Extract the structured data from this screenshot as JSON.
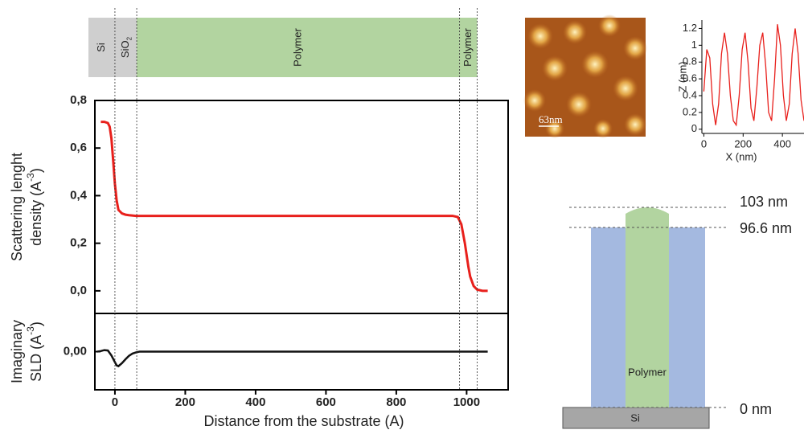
{
  "chart_data": [
    {
      "type": "line",
      "ylabel": {
        "line1": "Scattering lenght",
        "line2": "density  (A",
        "sup": "-3",
        "close": ")"
      },
      "x": [
        -40,
        -30,
        -20,
        -15,
        -10,
        -5,
        0,
        5,
        10,
        20,
        30,
        40,
        60,
        100,
        500,
        900,
        960,
        975,
        985,
        995,
        1000,
        1005,
        1010,
        1020,
        1030,
        1045,
        1060
      ],
      "series": [
        {
          "color": "#e8201c",
          "values": [
            0.71,
            0.71,
            0.705,
            0.69,
            0.64,
            0.55,
            0.45,
            0.38,
            0.34,
            0.325,
            0.32,
            0.318,
            0.315,
            0.315,
            0.315,
            0.315,
            0.315,
            0.31,
            0.28,
            0.2,
            0.15,
            0.1,
            0.06,
            0.02,
            0.005,
            0,
            0
          ]
        }
      ],
      "xlim": [
        -57,
        1118
      ],
      "ylim": [
        -0.095,
        0.8
      ],
      "yticks": [
        {
          "value": 0,
          "label": "0,0"
        },
        {
          "value": 0.2,
          "label": "0,2"
        },
        {
          "value": 0.4,
          "label": "0,4"
        },
        {
          "value": 0.6,
          "label": "0,6"
        },
        {
          "value": 0.8,
          "label": "0,8"
        }
      ]
    },
    {
      "type": "line",
      "ylabel": {
        "line1": "Imaginary",
        "line2": "SLD  (A",
        "sup": "-3",
        "close": ")"
      },
      "xlabel": "Distance from the substrate (A)",
      "x": [
        -50,
        -40,
        -30,
        -20,
        -10,
        0,
        5,
        10,
        20,
        30,
        40,
        50,
        60,
        70,
        100,
        600,
        1060
      ],
      "series": [
        {
          "color": "#111111",
          "values": [
            0,
            0.0003,
            0.0008,
            0.0006,
            -0.002,
            -0.0055,
            -0.0072,
            -0.0076,
            -0.006,
            -0.004,
            -0.0022,
            -0.001,
            -0.0004,
            0,
            0,
            0,
            0
          ]
        }
      ],
      "xlim": [
        -57,
        1118
      ],
      "ylim": [
        -0.02,
        0.02
      ],
      "xticks": [
        0,
        200,
        400,
        600,
        800,
        1000
      ],
      "yticks": [
        {
          "value": 0,
          "label": "0,00"
        }
      ]
    },
    {
      "type": "line",
      "xlabel": "X (nm)",
      "ylabel": "Z (nm)",
      "x": [
        0,
        15,
        30,
        45,
        60,
        75,
        90,
        105,
        120,
        135,
        150,
        165,
        180,
        195,
        210,
        225,
        240,
        255,
        270,
        285,
        300,
        315,
        330,
        345,
        360,
        375,
        390,
        405,
        420,
        435,
        450,
        465,
        480,
        495,
        510
      ],
      "series": [
        {
          "color": "#e8201c",
          "values": [
            0.45,
            0.95,
            0.85,
            0.3,
            0.05,
            0.3,
            0.9,
            1.15,
            0.9,
            0.4,
            0.1,
            0.05,
            0.4,
            0.95,
            1.15,
            0.8,
            0.25,
            0.1,
            0.5,
            1.0,
            1.15,
            0.75,
            0.2,
            0.1,
            0.6,
            1.25,
            1.0,
            0.4,
            0.1,
            0.3,
            0.9,
            1.2,
            0.9,
            0.35,
            0.1
          ]
        }
      ],
      "xlim": [
        -10,
        510
      ],
      "ylim": [
        -0.05,
        1.3
      ],
      "xticks": [
        0,
        200,
        400
      ],
      "yticks": [
        0,
        0.2,
        0.4,
        0.6,
        0.8,
        1,
        1.2
      ]
    }
  ],
  "layers": {
    "names": [
      "Si",
      "SiO",
      "Polymer",
      "Polymer"
    ],
    "sub": "2",
    "boundaries": [
      0,
      62,
      980,
      1030
    ]
  },
  "afm_image": {
    "scale_label": "63nm"
  },
  "diagram": {
    "levels": [
      "103 nm",
      "96.6 nm",
      "0 nm"
    ],
    "polymer": "Polymer",
    "substrate": "Si"
  }
}
